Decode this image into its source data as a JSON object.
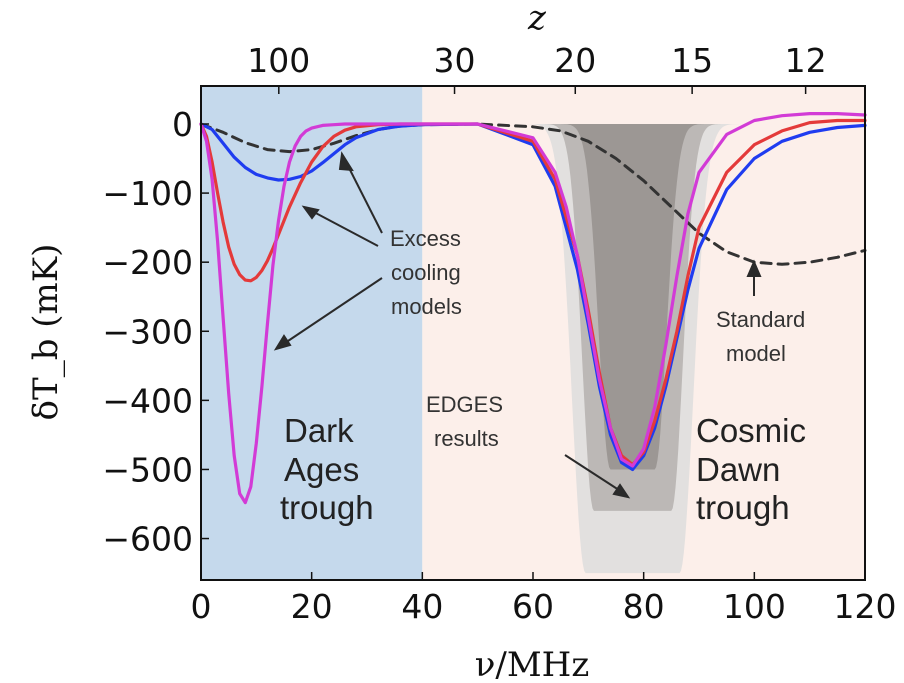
{
  "chart_data": {
    "type": "line",
    "xlabel": "ν/MHz",
    "ylabel": "δT_b (mK)",
    "top_axis_label": "z",
    "xlim": [
      0,
      120
    ],
    "ylim": [
      -660,
      55
    ],
    "x_ticks": [
      "0",
      "20",
      "40",
      "60",
      "80",
      "100",
      "120"
    ],
    "x_tick_values": [
      0,
      20,
      40,
      60,
      80,
      100,
      120
    ],
    "y_ticks": [
      "0",
      "−100",
      "−200",
      "−300",
      "−400",
      "−500",
      "−600"
    ],
    "y_tick_values": [
      0,
      -100,
      -200,
      -300,
      -400,
      -500,
      -600
    ],
    "top_ticks": [
      "100",
      "30",
      "20",
      "15",
      "12"
    ],
    "top_tick_freqs": [
      14.06,
      45.82,
      67.64,
      88.76,
      109.27
    ],
    "regions": [
      {
        "x_range": [
          0,
          40
        ],
        "color": "#c5d9ec"
      },
      {
        "x_range": [
          40,
          120
        ],
        "color": "#fcefea"
      }
    ],
    "bands": [
      {
        "color": "#e2e0df",
        "center": 78,
        "floor": -650,
        "inner_half_width": 8.5,
        "edge_width": 3.5
      },
      {
        "color": "#bcb8b6",
        "center": 78,
        "floor": -560,
        "inner_half_width": 7,
        "edge_width": 3
      },
      {
        "color": "#9c9794",
        "center": 78,
        "floor": -500,
        "inner_half_width": 4,
        "edge_width": 3
      }
    ],
    "series": [
      {
        "style": "dashed",
        "color": "#333333",
        "x": [
          0,
          4,
          8,
          12,
          16,
          20,
          24,
          28,
          32,
          36,
          40,
          50,
          60,
          65,
          70,
          75,
          80,
          85,
          90,
          95,
          100,
          105,
          110,
          115,
          120
        ],
        "y": [
          0,
          -12,
          -27,
          -37,
          -40,
          -37,
          -28,
          -17,
          -8,
          -3,
          -1,
          0,
          -4,
          -10,
          -25,
          -50,
          -82,
          -120,
          -158,
          -185,
          -200,
          -203,
          -200,
          -193,
          -183
        ]
      },
      {
        "style": "solid",
        "color": "#1f3cf0",
        "x": [
          0,
          2,
          4,
          6,
          8,
          10,
          12,
          14,
          16,
          18,
          20,
          22,
          24,
          26,
          28,
          32,
          36,
          40,
          50,
          60,
          64,
          68,
          70,
          72,
          74,
          76,
          78,
          80,
          82,
          84,
          86,
          88,
          90,
          95,
          100,
          105,
          110,
          115,
          120
        ],
        "y": [
          0,
          -8,
          -28,
          -48,
          -63,
          -73,
          -78,
          -81,
          -80,
          -76,
          -68,
          -56,
          -43,
          -30,
          -20,
          -8,
          -3,
          -1,
          0,
          -30,
          -90,
          -210,
          -290,
          -380,
          -450,
          -490,
          -500,
          -480,
          -440,
          -380,
          -310,
          -240,
          -180,
          -95,
          -50,
          -25,
          -12,
          -5,
          -2
        ]
      },
      {
        "style": "solid",
        "color": "#e43a3a",
        "x": [
          0,
          1,
          2,
          3,
          4,
          5,
          6,
          7,
          8,
          9,
          10,
          11,
          12,
          13,
          14,
          16,
          18,
          20,
          22,
          24,
          26,
          28,
          32,
          36,
          40,
          50,
          60,
          64,
          68,
          70,
          72,
          74,
          76,
          78,
          80,
          82,
          84,
          86,
          88,
          90,
          95,
          100,
          105,
          110,
          115,
          120
        ],
        "y": [
          0,
          -18,
          -55,
          -100,
          -142,
          -178,
          -203,
          -218,
          -226,
          -227,
          -222,
          -212,
          -198,
          -180,
          -160,
          -120,
          -85,
          -55,
          -33,
          -18,
          -9,
          -4,
          -1,
          0,
          0,
          0,
          -25,
          -80,
          -190,
          -270,
          -360,
          -440,
          -480,
          -493,
          -475,
          -430,
          -370,
          -300,
          -220,
          -150,
          -70,
          -30,
          -10,
          2,
          5,
          5
        ]
      },
      {
        "style": "solid",
        "color": "#d23bd6",
        "x": [
          0,
          1,
          2,
          3,
          4,
          5,
          6,
          7,
          8,
          9,
          10,
          11,
          12,
          13,
          14,
          15,
          16,
          17,
          18,
          19,
          20,
          22,
          24,
          26,
          28,
          32,
          36,
          40,
          50,
          60,
          64,
          66,
          68,
          70,
          72,
          74,
          76,
          78,
          80,
          82,
          84,
          86,
          88,
          90,
          95,
          100,
          105,
          110,
          115,
          120
        ],
        "y": [
          0,
          -25,
          -80,
          -170,
          -280,
          -390,
          -480,
          -535,
          -548,
          -525,
          -462,
          -380,
          -290,
          -205,
          -140,
          -90,
          -55,
          -32,
          -18,
          -10,
          -6,
          -2,
          -1,
          0,
          0,
          0,
          0,
          0,
          0,
          -20,
          -70,
          -120,
          -190,
          -280,
          -370,
          -440,
          -485,
          -495,
          -470,
          -410,
          -320,
          -220,
          -130,
          -70,
          -15,
          5,
          12,
          15,
          15,
          13
        ]
      }
    ],
    "annotations": {
      "excess_line1": "Excess",
      "excess_line2": "cooling",
      "excess_line3": "models",
      "standard_line1": "Standard",
      "standard_line2": "model",
      "edges_line1": "EDGES",
      "edges_line2": "results",
      "dark_line1": "Dark",
      "dark_line2": "Ages",
      "dark_line3": "trough",
      "cosmic_line1": "Cosmic",
      "cosmic_line2": "Dawn",
      "cosmic_line3": "trough"
    }
  }
}
